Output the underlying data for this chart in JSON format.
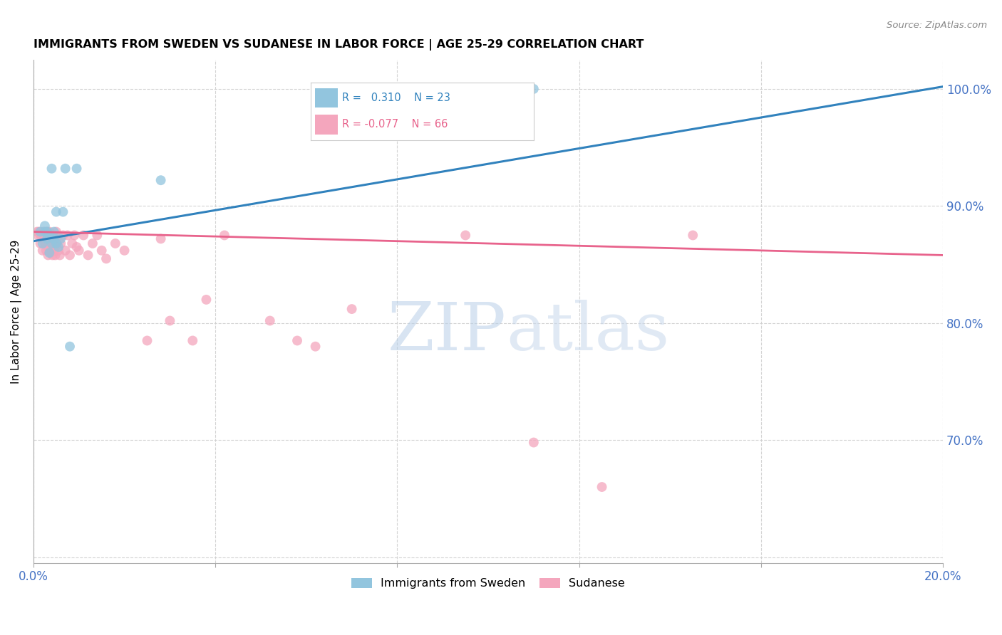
{
  "title": "IMMIGRANTS FROM SWEDEN VS SUDANESE IN LABOR FORCE | AGE 25-29 CORRELATION CHART",
  "source": "Source: ZipAtlas.com",
  "ylabel": "In Labor Force | Age 25-29",
  "xlim": [
    0.0,
    0.2
  ],
  "ylim": [
    0.595,
    1.025
  ],
  "xticks": [
    0.0,
    0.04,
    0.08,
    0.12,
    0.16,
    0.2
  ],
  "xticklabels": [
    "0.0%",
    "",
    "",
    "",
    "",
    "20.0%"
  ],
  "yticks": [
    0.6,
    0.7,
    0.8,
    0.9,
    1.0
  ],
  "yticklabels": [
    "",
    "70.0%",
    "80.0%",
    "90.0%",
    "100.0%"
  ],
  "legend_r_sweden": "0.310",
  "legend_n_sweden": "23",
  "legend_r_sudanese": "-0.077",
  "legend_n_sudanese": "66",
  "watermark_zip": "ZIP",
  "watermark_atlas": "atlas",
  "sweden_color": "#92c5de",
  "sudanese_color": "#f4a6bd",
  "sweden_line_color": "#3182bd",
  "sudanese_line_color": "#e8638c",
  "grid_color": "#d0d0d0",
  "axis_label_color": "#4472c4",
  "sweden_x": [
    0.0015,
    0.002,
    0.0025,
    0.0025,
    0.003,
    0.003,
    0.0035,
    0.0035,
    0.004,
    0.004,
    0.0045,
    0.0045,
    0.005,
    0.005,
    0.0055,
    0.006,
    0.0065,
    0.007,
    0.008,
    0.0095,
    0.028,
    0.088,
    0.11
  ],
  "sweden_y": [
    0.878,
    0.868,
    0.878,
    0.883,
    0.872,
    0.878,
    0.86,
    0.875,
    0.868,
    0.932,
    0.872,
    0.878,
    0.868,
    0.895,
    0.865,
    0.872,
    0.895,
    0.932,
    0.78,
    0.932,
    0.922,
    1.0,
    1.0
  ],
  "sudanese_x": [
    0.0008,
    0.001,
    0.0012,
    0.0015,
    0.0015,
    0.0018,
    0.002,
    0.002,
    0.0022,
    0.0022,
    0.0025,
    0.0025,
    0.0028,
    0.0028,
    0.003,
    0.003,
    0.0032,
    0.0032,
    0.0035,
    0.0035,
    0.0038,
    0.0038,
    0.004,
    0.004,
    0.0042,
    0.0042,
    0.0045,
    0.0045,
    0.0048,
    0.0048,
    0.005,
    0.0052,
    0.0055,
    0.0055,
    0.0058,
    0.006,
    0.0065,
    0.007,
    0.0075,
    0.008,
    0.0085,
    0.009,
    0.0095,
    0.01,
    0.011,
    0.012,
    0.013,
    0.014,
    0.015,
    0.016,
    0.018,
    0.02,
    0.025,
    0.028,
    0.03,
    0.035,
    0.038,
    0.042,
    0.052,
    0.058,
    0.062,
    0.07,
    0.095,
    0.11,
    0.125,
    0.145
  ],
  "sudanese_y": [
    0.878,
    0.875,
    0.878,
    0.868,
    0.875,
    0.875,
    0.862,
    0.872,
    0.875,
    0.878,
    0.868,
    0.872,
    0.862,
    0.868,
    0.875,
    0.878,
    0.858,
    0.865,
    0.872,
    0.878,
    0.86,
    0.868,
    0.862,
    0.875,
    0.858,
    0.868,
    0.862,
    0.875,
    0.858,
    0.865,
    0.878,
    0.868,
    0.862,
    0.875,
    0.858,
    0.868,
    0.875,
    0.862,
    0.875,
    0.858,
    0.868,
    0.875,
    0.865,
    0.862,
    0.875,
    0.858,
    0.868,
    0.875,
    0.862,
    0.855,
    0.868,
    0.862,
    0.785,
    0.872,
    0.802,
    0.785,
    0.82,
    0.875,
    0.802,
    0.785,
    0.78,
    0.812,
    0.875,
    0.698,
    0.66,
    0.875
  ],
  "sweden_trendline_x": [
    0.0,
    0.2
  ],
  "sweden_trendline_y": [
    0.87,
    1.002
  ],
  "sudanese_trendline_x": [
    0.0,
    0.2
  ],
  "sudanese_trendline_y": [
    0.878,
    0.858
  ]
}
